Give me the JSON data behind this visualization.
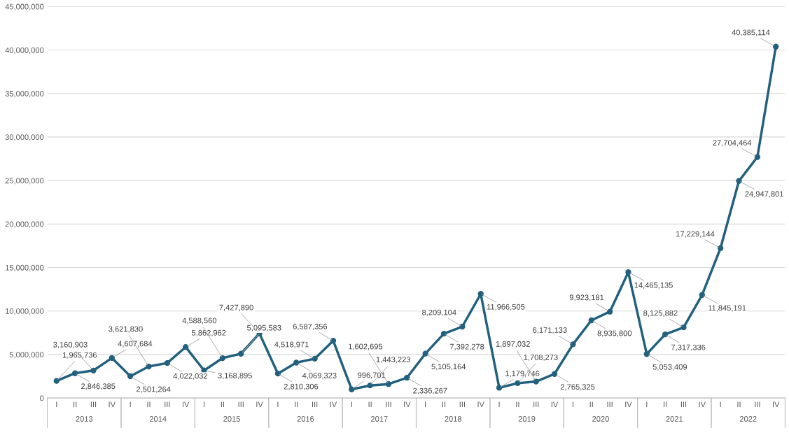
{
  "chart_data": {
    "type": "line",
    "categories": [
      "I",
      "II",
      "III",
      "IV",
      "I",
      "II",
      "III",
      "IV",
      "I",
      "II",
      "III",
      "IV",
      "I",
      "II",
      "III",
      "IV",
      "I",
      "II",
      "III",
      "IV",
      "I",
      "II",
      "III",
      "IV",
      "I",
      "II",
      "III",
      "IV",
      "I",
      "II",
      "III",
      "IV",
      "I",
      "II",
      "III",
      "IV",
      "I",
      "II",
      "III",
      "IV"
    ],
    "values": [
      1965736,
      2846385,
      3160903,
      4607684,
      2501264,
      3621830,
      4022032,
      5862962,
      3168895,
      4588560,
      5095583,
      7427890,
      2810306,
      4069323,
      4518971,
      6587356,
      996701,
      1443223,
      1602695,
      2336267,
      5105164,
      7392278,
      8209104,
      11966505,
      1179746,
      1708273,
      1897032,
      2765325,
      6171133,
      8935800,
      9923181,
      14465135,
      5053409,
      7317336,
      8125882,
      11845191,
      17229144,
      24947801,
      27704464,
      40385114
    ],
    "value_labels": [
      "1,965,736",
      "2,846,385",
      "3,160,903",
      "4,607,684",
      "2,501,264",
      "3,621,830",
      "4,022,032",
      "5,862,962",
      "3,168,895",
      "4,588,560",
      "5,095,583",
      "7,427,890",
      "2,810,306",
      "4,069,323",
      "4,518,971",
      "6,587,356",
      "996,701",
      "1,443,223",
      "1,602,695",
      "2,336,267",
      "5,105,164",
      "7,392,278",
      "8,209,104",
      "11,966,505",
      "1,179,746",
      "1,708,273",
      "1,897,032",
      "2,765,325",
      "6,171,133",
      "8,935,800",
      "9,923,181",
      "14,465,135",
      "5,053,409",
      "7,317,336",
      "8,125,882",
      "11,845,191",
      "17,229,144",
      "24,947,801",
      "27,704,464",
      "40,385,114"
    ],
    "color": "#22617e",
    "marker": "circle",
    "grid": "y",
    "ylim": [
      0,
      45000000
    ],
    "yticks": [
      0,
      {
        "value": 5000000,
        "label": "5,000,000"
      },
      {
        "value": 10000000,
        "label": "10,000,000"
      },
      {
        "value": 15000000,
        "label": "15,000,000"
      },
      {
        "value": 20000000,
        "label": "20,000,000"
      },
      {
        "value": 25000000,
        "label": "25,000,000"
      },
      {
        "value": 30000000,
        "label": "30,000,000"
      },
      {
        "value": 35000000,
        "label": "35,000,000"
      },
      {
        "value": 40000000,
        "label": "40,000,000"
      },
      {
        "value": 45000000,
        "label": "45,000,000"
      }
    ],
    "annotations": [
      "2013",
      "2014",
      "2015",
      "2016",
      "2017",
      "2018",
      "2019",
      "2020",
      "2021",
      "2022"
    ]
  }
}
